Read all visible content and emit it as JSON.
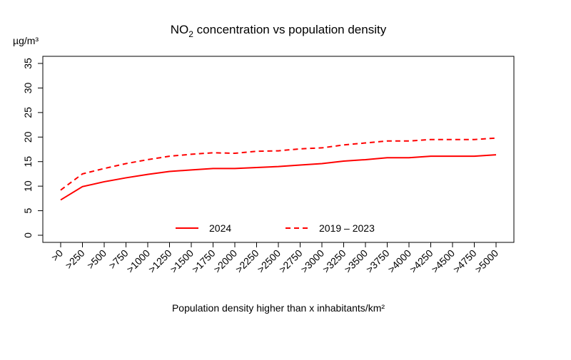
{
  "chart_data": {
    "type": "line",
    "title_main": "NO",
    "title_sub": "2",
    "title_rest": " concentration vs population density",
    "title": "NO2 concentration vs population density",
    "ylabel": "µg/m³",
    "xlabel": "Population density higher than x inhabitants/km²",
    "ylim": [
      0,
      35
    ],
    "yticks": [
      0,
      5,
      10,
      15,
      20,
      25,
      30,
      35
    ],
    "categories": [
      ">0",
      ">250",
      ">500",
      ">750",
      ">1000",
      ">1250",
      ">1500",
      ">1750",
      ">2000",
      ">2250",
      ">2500",
      ">2750",
      ">3000",
      ">3250",
      ">3500",
      ">3750",
      ">4000",
      ">4250",
      ">4500",
      ">4750",
      ">5000"
    ],
    "series": [
      {
        "name": "2024",
        "style": "solid",
        "color": "#ff0000",
        "values": [
          7.2,
          9.9,
          10.9,
          11.7,
          12.4,
          13.0,
          13.3,
          13.6,
          13.6,
          13.8,
          14.0,
          14.3,
          14.6,
          15.1,
          15.4,
          15.8,
          15.8,
          16.1,
          16.1,
          16.1,
          16.4
        ]
      },
      {
        "name": "2019 – 2023",
        "style": "dashed",
        "color": "#ff0000",
        "values": [
          9.2,
          12.5,
          13.6,
          14.6,
          15.4,
          16.1,
          16.5,
          16.8,
          16.7,
          17.1,
          17.2,
          17.6,
          17.8,
          18.4,
          18.8,
          19.2,
          19.2,
          19.5,
          19.5,
          19.5,
          19.8
        ]
      }
    ],
    "legend_position": "bottom-center",
    "grid": false
  }
}
